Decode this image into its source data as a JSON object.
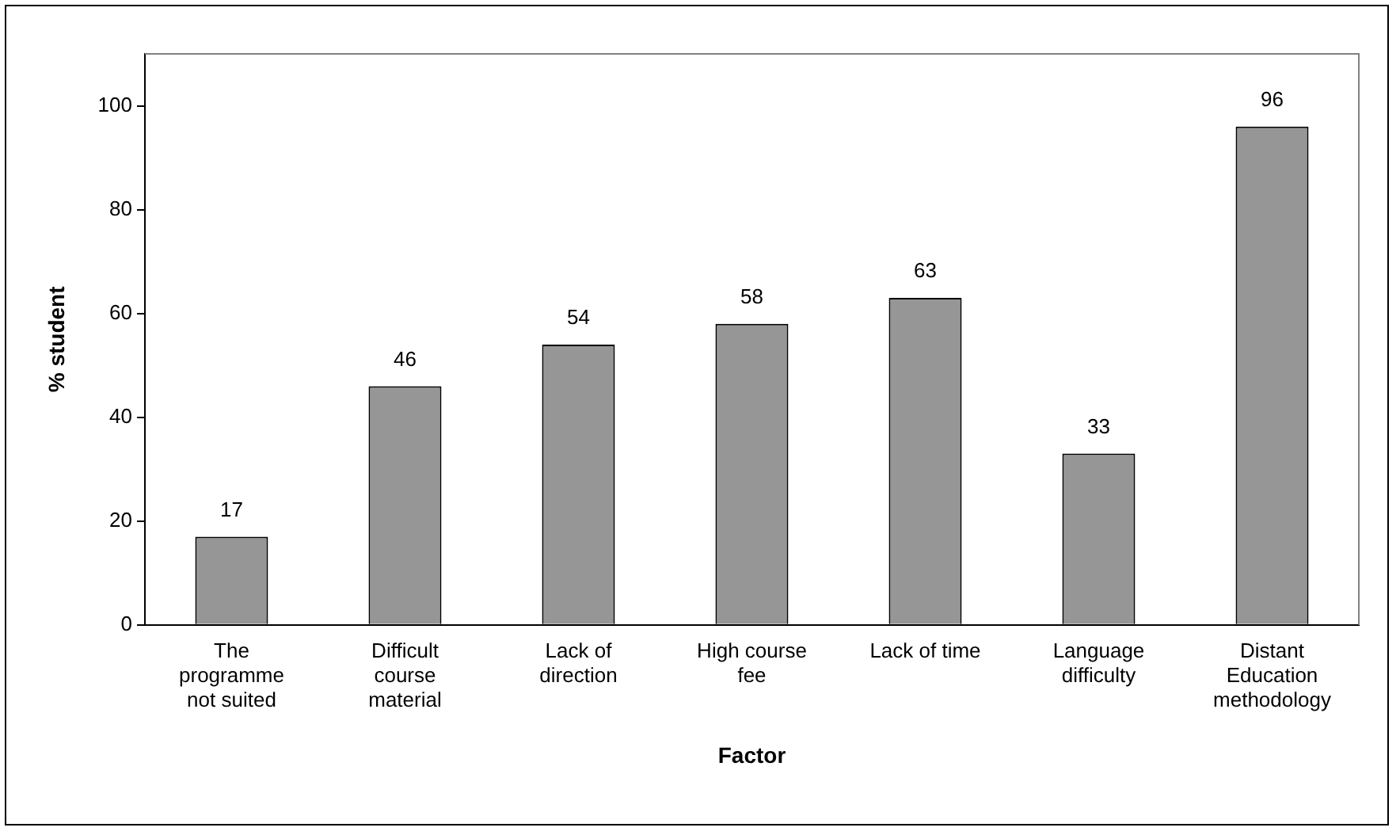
{
  "chart_data": {
    "type": "bar",
    "xlabel": "Factor",
    "ylabel": "% student",
    "categories": [
      "The programme not suited",
      "Difficult course material",
      "Lack of direction",
      "High course fee",
      "Lack of time",
      "Language difficulty",
      "Distant Education methodology"
    ],
    "values": [
      17,
      46,
      54,
      58,
      63,
      33,
      96
    ],
    "color": "#969696",
    "data_labels": true,
    "ylim": [
      0,
      110
    ],
    "yticks": [
      0,
      20,
      40,
      60,
      80,
      100
    ],
    "grid": false,
    "legend": false
  }
}
